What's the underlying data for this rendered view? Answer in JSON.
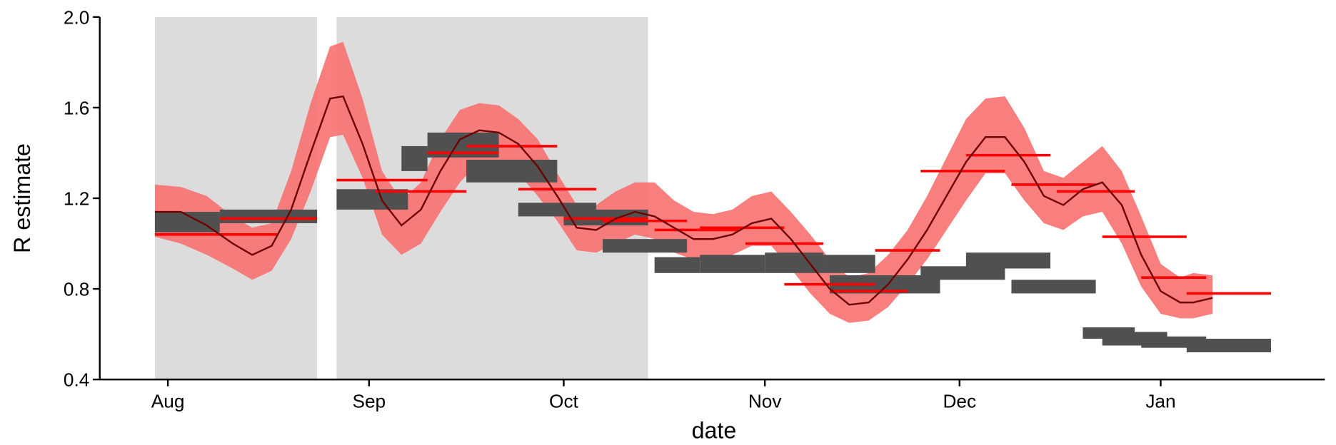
{
  "chart_data": {
    "type": "line",
    "xlabel": "date",
    "ylabel": "R estimate",
    "xlim": [
      -10.5,
      178.3
    ],
    "ylim": [
      0.4,
      2
    ],
    "xticks": [
      {
        "value": 0,
        "label": "Aug"
      },
      {
        "value": 31,
        "label": "Sep"
      },
      {
        "value": 61,
        "label": "Oct"
      },
      {
        "value": 92,
        "label": "Nov"
      },
      {
        "value": 122,
        "label": "Dec"
      },
      {
        "value": 153,
        "label": "Jan"
      }
    ],
    "yticks": [
      0.4,
      0.8,
      1.2,
      1.6,
      {
        "value": 2,
        "label": "2.0"
      }
    ],
    "x": [
      -2,
      2,
      6,
      10,
      13,
      16,
      19,
      22,
      25,
      27,
      30,
      33,
      36,
      39,
      42,
      45,
      48,
      51,
      54,
      57,
      60,
      63,
      66,
      69,
      72,
      75,
      78,
      81,
      84,
      87,
      90,
      93,
      96,
      99,
      102,
      105,
      108,
      111,
      114,
      117,
      120,
      123,
      126,
      129,
      132,
      135,
      138,
      141,
      144,
      147,
      150,
      153,
      156,
      158,
      161
    ],
    "values": [
      1.14,
      1.14,
      1.08,
      1.0,
      0.95,
      0.99,
      1.15,
      1.4,
      1.64,
      1.65,
      1.44,
      1.19,
      1.08,
      1.15,
      1.32,
      1.46,
      1.5,
      1.49,
      1.44,
      1.34,
      1.21,
      1.07,
      1.06,
      1.11,
      1.14,
      1.12,
      1.07,
      1.02,
      1.02,
      1.04,
      1.09,
      1.11,
      1.02,
      0.91,
      0.8,
      0.73,
      0.74,
      0.82,
      0.93,
      1.06,
      1.21,
      1.36,
      1.47,
      1.47,
      1.36,
      1.21,
      1.17,
      1.24,
      1.27,
      1.17,
      0.95,
      0.79,
      0.74,
      0.74,
      0.76
    ],
    "lower": [
      1.03,
      1.0,
      0.95,
      0.89,
      0.84,
      0.88,
      1.02,
      1.23,
      1.47,
      1.48,
      1.29,
      1.04,
      0.95,
      1.0,
      1.14,
      1.27,
      1.36,
      1.34,
      1.31,
      1.21,
      1.1,
      0.97,
      0.96,
      1.0,
      1.04,
      1.02,
      0.96,
      0.93,
      0.92,
      0.95,
      0.99,
      0.99,
      0.89,
      0.78,
      0.69,
      0.65,
      0.66,
      0.72,
      0.82,
      0.93,
      1.06,
      1.19,
      1.31,
      1.31,
      1.19,
      1.09,
      1.06,
      1.12,
      1.14,
      1.0,
      0.81,
      0.69,
      0.67,
      0.67,
      0.69
    ],
    "upper": [
      1.26,
      1.25,
      1.21,
      1.12,
      1.07,
      1.09,
      1.32,
      1.62,
      1.87,
      1.89,
      1.64,
      1.32,
      1.19,
      1.27,
      1.46,
      1.59,
      1.62,
      1.61,
      1.55,
      1.46,
      1.31,
      1.17,
      1.17,
      1.23,
      1.27,
      1.27,
      1.19,
      1.14,
      1.13,
      1.15,
      1.21,
      1.23,
      1.14,
      1.04,
      0.93,
      0.85,
      0.87,
      0.95,
      1.06,
      1.21,
      1.38,
      1.55,
      1.64,
      1.65,
      1.51,
      1.32,
      1.29,
      1.36,
      1.43,
      1.32,
      1.12,
      0.91,
      0.85,
      0.87,
      0.86
    ],
    "line_color": "#6e0000",
    "band_color": "#f87070",
    "weekly": {
      "color": "#ff0000",
      "x_start": [
        -2,
        8,
        26,
        32,
        40,
        46,
        54,
        61,
        67,
        75,
        82,
        89,
        95,
        102,
        109,
        116,
        123,
        130,
        137,
        144,
        150,
        157
      ],
      "x_end": [
        17,
        23,
        40,
        46,
        51,
        60,
        66,
        74,
        80,
        88,
        95,
        101,
        109,
        114,
        119,
        129,
        136,
        143,
        149,
        157,
        160,
        170
      ],
      "values": [
        1.04,
        1.11,
        1.28,
        1.23,
        1.4,
        1.43,
        1.24,
        1.11,
        1.1,
        1.06,
        1.07,
        1.0,
        0.82,
        0.79,
        0.97,
        1.32,
        1.39,
        1.26,
        1.23,
        1.03,
        0.85,
        0.78
      ]
    },
    "intervals": {
      "color": "#505050",
      "x_start": [
        -2,
        8,
        26,
        36,
        40,
        46,
        54,
        61,
        67,
        75,
        82,
        92,
        101,
        102,
        109,
        116,
        123,
        130,
        141,
        144,
        150,
        157
      ],
      "x_end": [
        8,
        23,
        37,
        40,
        51,
        60,
        66,
        74,
        80,
        82,
        92,
        101,
        109,
        114,
        119,
        129,
        136,
        143,
        149,
        154,
        160,
        170
      ],
      "lower": [
        1.05,
        1.09,
        1.15,
        1.32,
        1.38,
        1.27,
        1.12,
        1.08,
        0.96,
        0.87,
        0.87,
        0.87,
        0.87,
        0.78,
        0.78,
        0.84,
        0.89,
        0.78,
        0.58,
        0.55,
        0.54,
        0.52
      ],
      "upper": [
        1.14,
        1.15,
        1.24,
        1.43,
        1.49,
        1.37,
        1.18,
        1.15,
        1.02,
        0.94,
        0.95,
        0.96,
        0.95,
        0.86,
        0.86,
        0.9,
        0.96,
        0.84,
        0.63,
        0.61,
        0.59,
        0.58
      ]
    },
    "shaded": {
      "color": "#dcdcdc",
      "x_start": [
        -2,
        26
      ],
      "x_end": [
        23,
        74
      ]
    }
  }
}
